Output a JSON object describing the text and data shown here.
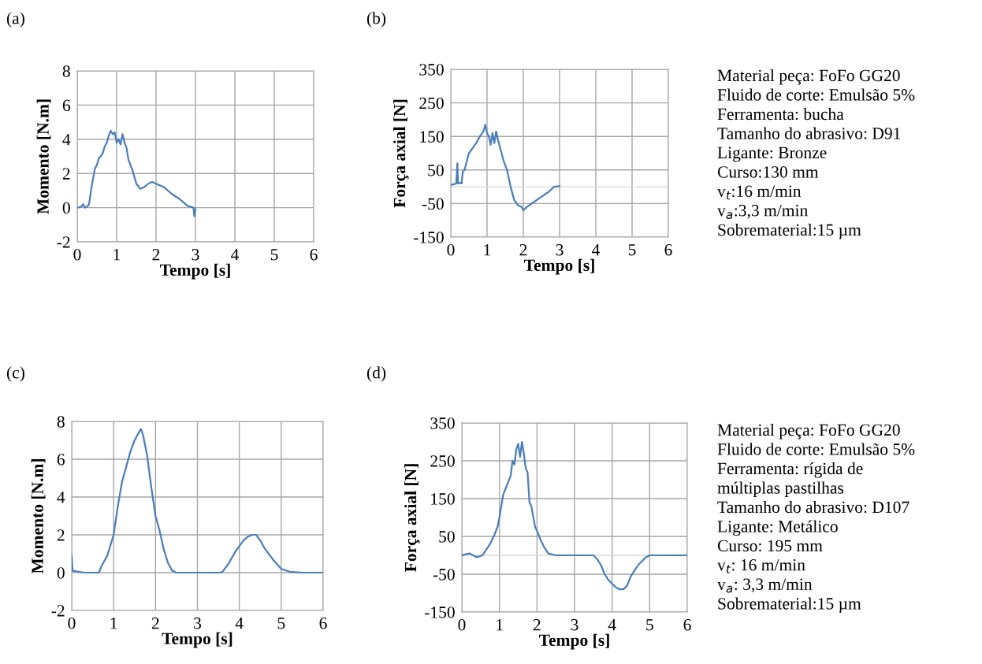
{
  "chart_data": [
    {
      "type": "line",
      "title": "(a)",
      "xlabel": "Tempo [s]",
      "ylabel": "Momento [N.m]",
      "xlim": [
        0,
        6
      ],
      "xticks": [
        0,
        1,
        2,
        3,
        4,
        5,
        6
      ],
      "ylim": [
        -2,
        8
      ],
      "yticks": [
        -2,
        0,
        2,
        4,
        6,
        8
      ],
      "grid": true,
      "series": [
        {
          "color": "#4a7ebb",
          "x": [
            0,
            0.1,
            0.15,
            0.2,
            0.25,
            0.3,
            0.35,
            0.4,
            0.45,
            0.5,
            0.55,
            0.6,
            0.65,
            0.7,
            0.75,
            0.8,
            0.85,
            0.9,
            0.95,
            1.0,
            1.05,
            1.1,
            1.15,
            1.2,
            1.25,
            1.3,
            1.4,
            1.5,
            1.6,
            1.7,
            1.8,
            1.9,
            2.0,
            2.2,
            2.4,
            2.6,
            2.8,
            2.95,
            2.97,
            3.0
          ],
          "values": [
            0,
            0.05,
            0.2,
            0,
            0.05,
            0.2,
            1.0,
            1.7,
            2.3,
            2.5,
            2.9,
            3.0,
            3.2,
            3.6,
            3.8,
            4.2,
            4.5,
            4.3,
            4.4,
            3.8,
            4.0,
            3.7,
            4.3,
            3.8,
            3.5,
            2.8,
            2.2,
            1.4,
            1.1,
            1.2,
            1.4,
            1.5,
            1.4,
            1.2,
            0.8,
            0.5,
            0.1,
            0.0,
            -0.5,
            -0.1
          ]
        }
      ]
    },
    {
      "type": "line",
      "title": "(b)",
      "xlabel": "Tempo [s]",
      "ylabel": "Força axial [N]",
      "xlim": [
        0,
        6
      ],
      "xticks": [
        0,
        1,
        2,
        3,
        4,
        5,
        6
      ],
      "ylim": [
        -150,
        350
      ],
      "yticks": [
        -150,
        -50,
        50,
        150,
        250,
        350
      ],
      "grid": true,
      "ref_lines": [
        {
          "axis": "y",
          "value": 0,
          "color": "#d9d9d9"
        }
      ],
      "series": [
        {
          "color": "#4a7ebb",
          "x": [
            0,
            0.1,
            0.15,
            0.18,
            0.2,
            0.25,
            0.3,
            0.33,
            0.38,
            0.45,
            0.5,
            0.6,
            0.7,
            0.8,
            0.9,
            0.95,
            1.0,
            1.05,
            1.1,
            1.15,
            1.2,
            1.25,
            1.3,
            1.35,
            1.45,
            1.55,
            1.65,
            1.75,
            1.85,
            1.95,
            2.0,
            2.1,
            2.3,
            2.5,
            2.7,
            2.85,
            3.0
          ],
          "values": [
            5,
            8,
            10,
            70,
            10,
            12,
            10,
            45,
            50,
            80,
            100,
            115,
            130,
            150,
            165,
            185,
            160,
            150,
            125,
            160,
            130,
            165,
            140,
            120,
            80,
            50,
            0,
            -40,
            -55,
            -60,
            -70,
            -60,
            -45,
            -30,
            -15,
            0,
            2
          ]
        }
      ]
    },
    {
      "type": "other",
      "annotations": [
        "Material peça: FoFo GG20",
        "Fluido de corte: Emulsão 5%",
        "Ferramenta: bucha",
        "Tamanho do abrasivo: D91",
        "Ligante: Bronze",
        "Curso:130 mm",
        "v$_{t}$:16 m/min",
        "v$_{a}$:3,3 m/min",
        "Sobrematerial:15 µm"
      ]
    },
    {
      "type": "line",
      "title": "(c)",
      "xlabel": "Tempo [s]",
      "ylabel": "Momento [N.m]",
      "xlim": [
        0,
        6
      ],
      "xticks": [
        0,
        1,
        2,
        3,
        4,
        5,
        6
      ],
      "ylim": [
        -2,
        8
      ],
      "yticks": [
        -2,
        0,
        2,
        4,
        6,
        8
      ],
      "grid": true,
      "series": [
        {
          "color": "#4a7ebb",
          "x": [
            0,
            0.02,
            0.3,
            0.65,
            0.7,
            0.85,
            1.0,
            1.1,
            1.2,
            1.3,
            1.4,
            1.5,
            1.6,
            1.65,
            1.7,
            1.8,
            1.9,
            2.0,
            2.1,
            2.2,
            2.3,
            2.4,
            2.5,
            3.0,
            3.55,
            3.6,
            3.75,
            3.9,
            4.0,
            4.1,
            4.2,
            4.3,
            4.4,
            4.5,
            4.6,
            4.8,
            5.0,
            5.2,
            5.5,
            6.0
          ],
          "values": [
            0.9,
            0.1,
            0,
            0,
            0.3,
            0.9,
            2.0,
            3.5,
            4.8,
            5.6,
            6.4,
            7.0,
            7.4,
            7.6,
            7.3,
            6.2,
            4.5,
            3.0,
            2.2,
            1.2,
            0.5,
            0.1,
            0,
            0,
            0,
            0.05,
            0.5,
            1.1,
            1.4,
            1.7,
            1.9,
            2.0,
            2.0,
            1.7,
            1.3,
            0.7,
            0.2,
            0.05,
            0,
            0
          ]
        }
      ]
    },
    {
      "type": "line",
      "title": "(d)",
      "xlabel": "Tempo [s]",
      "ylabel": "Força axial [N]",
      "xlim": [
        0,
        6
      ],
      "xticks": [
        0,
        1,
        2,
        3,
        4,
        5,
        6
      ],
      "ylim": [
        -150,
        350
      ],
      "yticks": [
        -150,
        -50,
        50,
        150,
        250,
        350
      ],
      "grid": true,
      "ref_lines": [
        {
          "axis": "y",
          "value": 0,
          "color": "#d9d9d9"
        }
      ],
      "series": [
        {
          "color": "#4a7ebb",
          "x": [
            0,
            0.2,
            0.4,
            0.55,
            0.65,
            0.75,
            0.85,
            0.95,
            1.0,
            1.05,
            1.1,
            1.2,
            1.3,
            1.35,
            1.4,
            1.45,
            1.5,
            1.55,
            1.6,
            1.65,
            1.7,
            1.75,
            1.8,
            1.85,
            1.95,
            2.0,
            2.1,
            2.2,
            2.3,
            2.5,
            3.0,
            3.5,
            3.6,
            3.7,
            3.8,
            3.9,
            4.0,
            4.1,
            4.2,
            4.3,
            4.4,
            4.5,
            4.6,
            4.7,
            4.8,
            4.9,
            5.0,
            5.5,
            6.0
          ],
          "values": [
            0,
            5,
            -5,
            0,
            15,
            30,
            50,
            75,
            100,
            130,
            160,
            185,
            210,
            250,
            240,
            280,
            295,
            260,
            300,
            270,
            230,
            220,
            140,
            130,
            75,
            65,
            40,
            20,
            5,
            0,
            0,
            0,
            -10,
            -25,
            -50,
            -65,
            -75,
            -85,
            -90,
            -90,
            -80,
            -55,
            -40,
            -25,
            -15,
            -5,
            0,
            0,
            0
          ]
        }
      ]
    },
    {
      "type": "other",
      "annotations": [
        "Material peça: FoFo GG20",
        "Fluido de corte: Emulsão 5%",
        "Ferramenta: rígida de",
        "múltiplas pastilhas",
        "Tamanho do abrasivo: D107",
        "Ligante: Metálico",
        "Curso: 195 mm",
        "v$_{t}$: 16 m/min",
        "v$_{a}$: 3,3 m/min",
        "Sobrematerial:15 µm"
      ]
    }
  ]
}
